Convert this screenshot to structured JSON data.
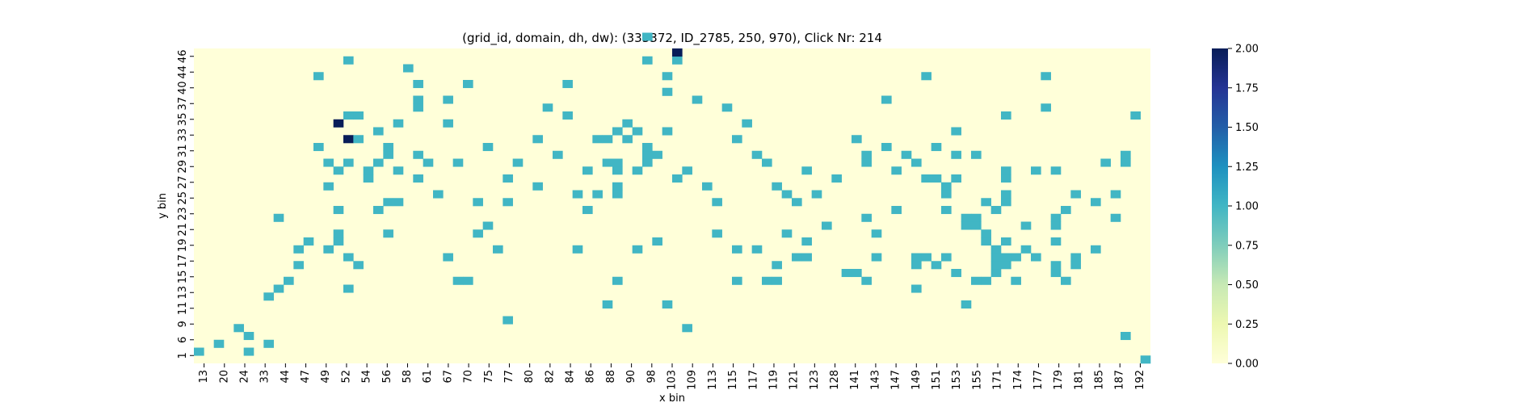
{
  "chart_data": {
    "type": "heatmap",
    "title": "(grid_id, domain, dh, dw): (333372, ID_2785, 250, 970), Click Nr: 214",
    "xlabel": "x bin",
    "ylabel": "y bin",
    "x_tick_labels": [
      "13",
      "20",
      "24",
      "33",
      "44",
      "47",
      "49",
      "52",
      "54",
      "56",
      "58",
      "61",
      "67",
      "70",
      "75",
      "77",
      "80",
      "82",
      "84",
      "86",
      "88",
      "90",
      "98",
      "103",
      "109",
      "113",
      "115",
      "117",
      "119",
      "121",
      "123",
      "128",
      "141",
      "143",
      "147",
      "149",
      "151",
      "153",
      "155",
      "171",
      "174",
      "177",
      "179",
      "181",
      "185",
      "187",
      "192"
    ],
    "y_tick_labels": [
      "46",
      "44",
      "40",
      "37",
      "35",
      "33",
      "31",
      "29",
      "27",
      "25",
      "23",
      "21",
      "19",
      "17",
      "15",
      "13",
      "11",
      "9",
      "6",
      "1"
    ],
    "n_columns": 96,
    "n_rows": 40,
    "colorbar": {
      "min": 0,
      "max": 2,
      "ticks": [
        "0.00",
        "0.25",
        "0.50",
        "0.75",
        "1.00",
        "1.25",
        "1.50",
        "1.75",
        "2.00"
      ],
      "colormap": "YlGnBu",
      "colors": {
        "low": "#ffffd9",
        "mid": "#41b6c4",
        "high": "#081d58"
      }
    },
    "cells": [
      [
        1,
        2,
        1
      ],
      [
        3,
        3,
        1
      ],
      [
        5,
        5,
        1
      ],
      [
        6,
        2,
        1
      ],
      [
        6,
        4,
        1
      ],
      [
        8,
        3,
        1
      ],
      [
        8,
        9,
        1
      ],
      [
        9,
        10,
        1
      ],
      [
        9,
        19,
        1
      ],
      [
        10,
        11,
        1
      ],
      [
        11,
        13,
        1
      ],
      [
        11,
        15,
        1
      ],
      [
        12,
        16,
        1
      ],
      [
        13,
        28,
        1
      ],
      [
        13,
        37,
        1
      ],
      [
        14,
        15,
        1
      ],
      [
        14,
        23,
        1
      ],
      [
        14,
        26,
        1
      ],
      [
        15,
        16,
        1
      ],
      [
        15,
        17,
        1
      ],
      [
        15,
        20,
        1
      ],
      [
        15,
        25,
        1
      ],
      [
        15,
        31,
        2
      ],
      [
        16,
        10,
        1
      ],
      [
        16,
        14,
        1
      ],
      [
        16,
        26,
        1
      ],
      [
        16,
        29,
        2
      ],
      [
        16,
        32,
        1
      ],
      [
        16,
        39,
        1
      ],
      [
        17,
        13,
        1
      ],
      [
        17,
        29,
        1
      ],
      [
        17,
        32,
        1
      ],
      [
        18,
        24,
        1
      ],
      [
        18,
        25,
        1
      ],
      [
        19,
        20,
        1
      ],
      [
        19,
        26,
        1
      ],
      [
        19,
        30,
        1
      ],
      [
        20,
        17,
        1
      ],
      [
        20,
        21,
        1
      ],
      [
        20,
        27,
        1
      ],
      [
        20,
        28,
        1
      ],
      [
        21,
        21,
        1
      ],
      [
        21,
        25,
        1
      ],
      [
        21,
        31,
        1
      ],
      [
        22,
        38,
        1
      ],
      [
        23,
        24,
        1
      ],
      [
        23,
        27,
        1
      ],
      [
        23,
        33,
        1
      ],
      [
        23,
        34,
        1
      ],
      [
        23,
        36,
        1
      ],
      [
        24,
        26,
        1
      ],
      [
        25,
        22,
        1
      ],
      [
        26,
        14,
        1
      ],
      [
        26,
        31,
        1
      ],
      [
        26,
        34,
        1
      ],
      [
        27,
        11,
        1
      ],
      [
        27,
        26,
        1
      ],
      [
        28,
        11,
        1
      ],
      [
        28,
        36,
        1
      ],
      [
        29,
        17,
        1
      ],
      [
        29,
        21,
        1
      ],
      [
        30,
        18,
        1
      ],
      [
        30,
        28,
        1
      ],
      [
        31,
        15,
        1
      ],
      [
        32,
        6,
        1
      ],
      [
        32,
        21,
        1
      ],
      [
        32,
        24,
        1
      ],
      [
        33,
        26,
        1
      ],
      [
        35,
        23,
        1
      ],
      [
        35,
        29,
        1
      ],
      [
        36,
        33,
        1
      ],
      [
        37,
        27,
        1
      ],
      [
        38,
        32,
        1
      ],
      [
        38,
        36,
        1
      ],
      [
        39,
        15,
        1
      ],
      [
        39,
        22,
        1
      ],
      [
        40,
        20,
        1
      ],
      [
        40,
        25,
        1
      ],
      [
        41,
        22,
        1
      ],
      [
        41,
        29,
        1
      ],
      [
        42,
        8,
        1
      ],
      [
        42,
        26,
        1
      ],
      [
        42,
        29,
        1
      ],
      [
        43,
        11,
        1
      ],
      [
        43,
        22,
        1
      ],
      [
        43,
        23,
        1
      ],
      [
        43,
        25,
        1
      ],
      [
        43,
        26,
        1
      ],
      [
        43,
        30,
        1
      ],
      [
        44,
        29,
        1
      ],
      [
        44,
        31,
        1
      ],
      [
        45,
        15,
        1
      ],
      [
        45,
        25,
        1
      ],
      [
        45,
        30,
        1
      ],
      [
        46,
        26,
        1
      ],
      [
        46,
        27,
        1
      ],
      [
        46,
        28,
        1
      ],
      [
        46,
        39,
        1
      ],
      [
        46,
        42,
        1
      ],
      [
        47,
        16,
        1
      ],
      [
        47,
        27,
        1
      ],
      [
        48,
        8,
        1
      ],
      [
        48,
        30,
        1
      ],
      [
        48,
        35,
        1
      ],
      [
        48,
        37,
        1
      ],
      [
        49,
        24,
        1
      ],
      [
        49,
        39,
        1
      ],
      [
        49,
        40,
        2
      ],
      [
        50,
        5,
        1
      ],
      [
        50,
        25,
        1
      ],
      [
        51,
        34,
        1
      ],
      [
        52,
        23,
        1
      ],
      [
        53,
        17,
        1
      ],
      [
        53,
        21,
        1
      ],
      [
        54,
        33,
        1
      ],
      [
        55,
        11,
        1
      ],
      [
        55,
        15,
        1
      ],
      [
        55,
        29,
        1
      ],
      [
        56,
        31,
        1
      ],
      [
        57,
        15,
        1
      ],
      [
        57,
        27,
        1
      ],
      [
        58,
        11,
        1
      ],
      [
        58,
        26,
        1
      ],
      [
        59,
        11,
        1
      ],
      [
        59,
        13,
        1
      ],
      [
        59,
        23,
        1
      ],
      [
        60,
        17,
        1
      ],
      [
        60,
        22,
        1
      ],
      [
        61,
        14,
        1
      ],
      [
        61,
        21,
        1
      ],
      [
        62,
        14,
        1
      ],
      [
        62,
        16,
        1
      ],
      [
        62,
        25,
        1
      ],
      [
        63,
        22,
        1
      ],
      [
        64,
        18,
        1
      ],
      [
        65,
        24,
        1
      ],
      [
        66,
        12,
        1
      ],
      [
        67,
        12,
        1
      ],
      [
        67,
        29,
        1
      ],
      [
        68,
        11,
        1
      ],
      [
        68,
        19,
        1
      ],
      [
        68,
        26,
        1
      ],
      [
        68,
        27,
        1
      ],
      [
        69,
        14,
        1
      ],
      [
        69,
        17,
        1
      ],
      [
        70,
        28,
        1
      ],
      [
        70,
        34,
        1
      ],
      [
        71,
        20,
        1
      ],
      [
        71,
        25,
        1
      ],
      [
        72,
        27,
        1
      ],
      [
        73,
        10,
        1
      ],
      [
        73,
        13,
        1
      ],
      [
        73,
        14,
        1
      ],
      [
        73,
        26,
        1
      ],
      [
        74,
        14,
        1
      ],
      [
        74,
        24,
        1
      ],
      [
        74,
        37,
        1
      ],
      [
        75,
        13,
        1
      ],
      [
        75,
        24,
        1
      ],
      [
        75,
        28,
        1
      ],
      [
        76,
        14,
        1
      ],
      [
        76,
        20,
        1
      ],
      [
        76,
        22,
        1
      ],
      [
        76,
        23,
        1
      ],
      [
        77,
        12,
        1
      ],
      [
        77,
        24,
        1
      ],
      [
        77,
        27,
        1
      ],
      [
        77,
        30,
        1
      ],
      [
        78,
        8,
        1
      ],
      [
        78,
        18,
        1
      ],
      [
        78,
        19,
        1
      ],
      [
        79,
        11,
        1
      ],
      [
        79,
        18,
        1
      ],
      [
        79,
        19,
        1
      ],
      [
        79,
        27,
        1
      ],
      [
        80,
        11,
        1
      ],
      [
        80,
        16,
        1
      ],
      [
        80,
        17,
        1
      ],
      [
        80,
        21,
        1
      ],
      [
        81,
        12,
        1
      ],
      [
        81,
        13,
        1
      ],
      [
        81,
        14,
        1
      ],
      [
        81,
        15,
        1
      ],
      [
        81,
        20,
        1
      ],
      [
        82,
        13,
        1
      ],
      [
        82,
        14,
        1
      ],
      [
        82,
        16,
        1
      ],
      [
        82,
        21,
        1
      ],
      [
        82,
        22,
        1
      ],
      [
        82,
        24,
        1
      ],
      [
        82,
        25,
        1
      ],
      [
        82,
        32,
        1
      ],
      [
        83,
        11,
        1
      ],
      [
        83,
        14,
        1
      ],
      [
        84,
        15,
        1
      ],
      [
        84,
        18,
        1
      ],
      [
        85,
        14,
        1
      ],
      [
        85,
        25,
        1
      ],
      [
        86,
        33,
        1
      ],
      [
        86,
        37,
        1
      ],
      [
        87,
        12,
        1
      ],
      [
        87,
        13,
        1
      ],
      [
        87,
        16,
        1
      ],
      [
        87,
        18,
        1
      ],
      [
        87,
        19,
        1
      ],
      [
        87,
        25,
        1
      ],
      [
        88,
        11,
        1
      ],
      [
        88,
        20,
        1
      ],
      [
        89,
        13,
        1
      ],
      [
        89,
        14,
        1
      ],
      [
        89,
        22,
        1
      ],
      [
        91,
        15,
        1
      ],
      [
        91,
        21,
        1
      ],
      [
        92,
        26,
        1
      ],
      [
        93,
        19,
        1
      ],
      [
        93,
        22,
        1
      ],
      [
        94,
        4,
        1
      ],
      [
        94,
        26,
        1
      ],
      [
        94,
        27,
        1
      ],
      [
        95,
        32,
        1
      ],
      [
        96,
        1,
        1
      ]
    ]
  }
}
